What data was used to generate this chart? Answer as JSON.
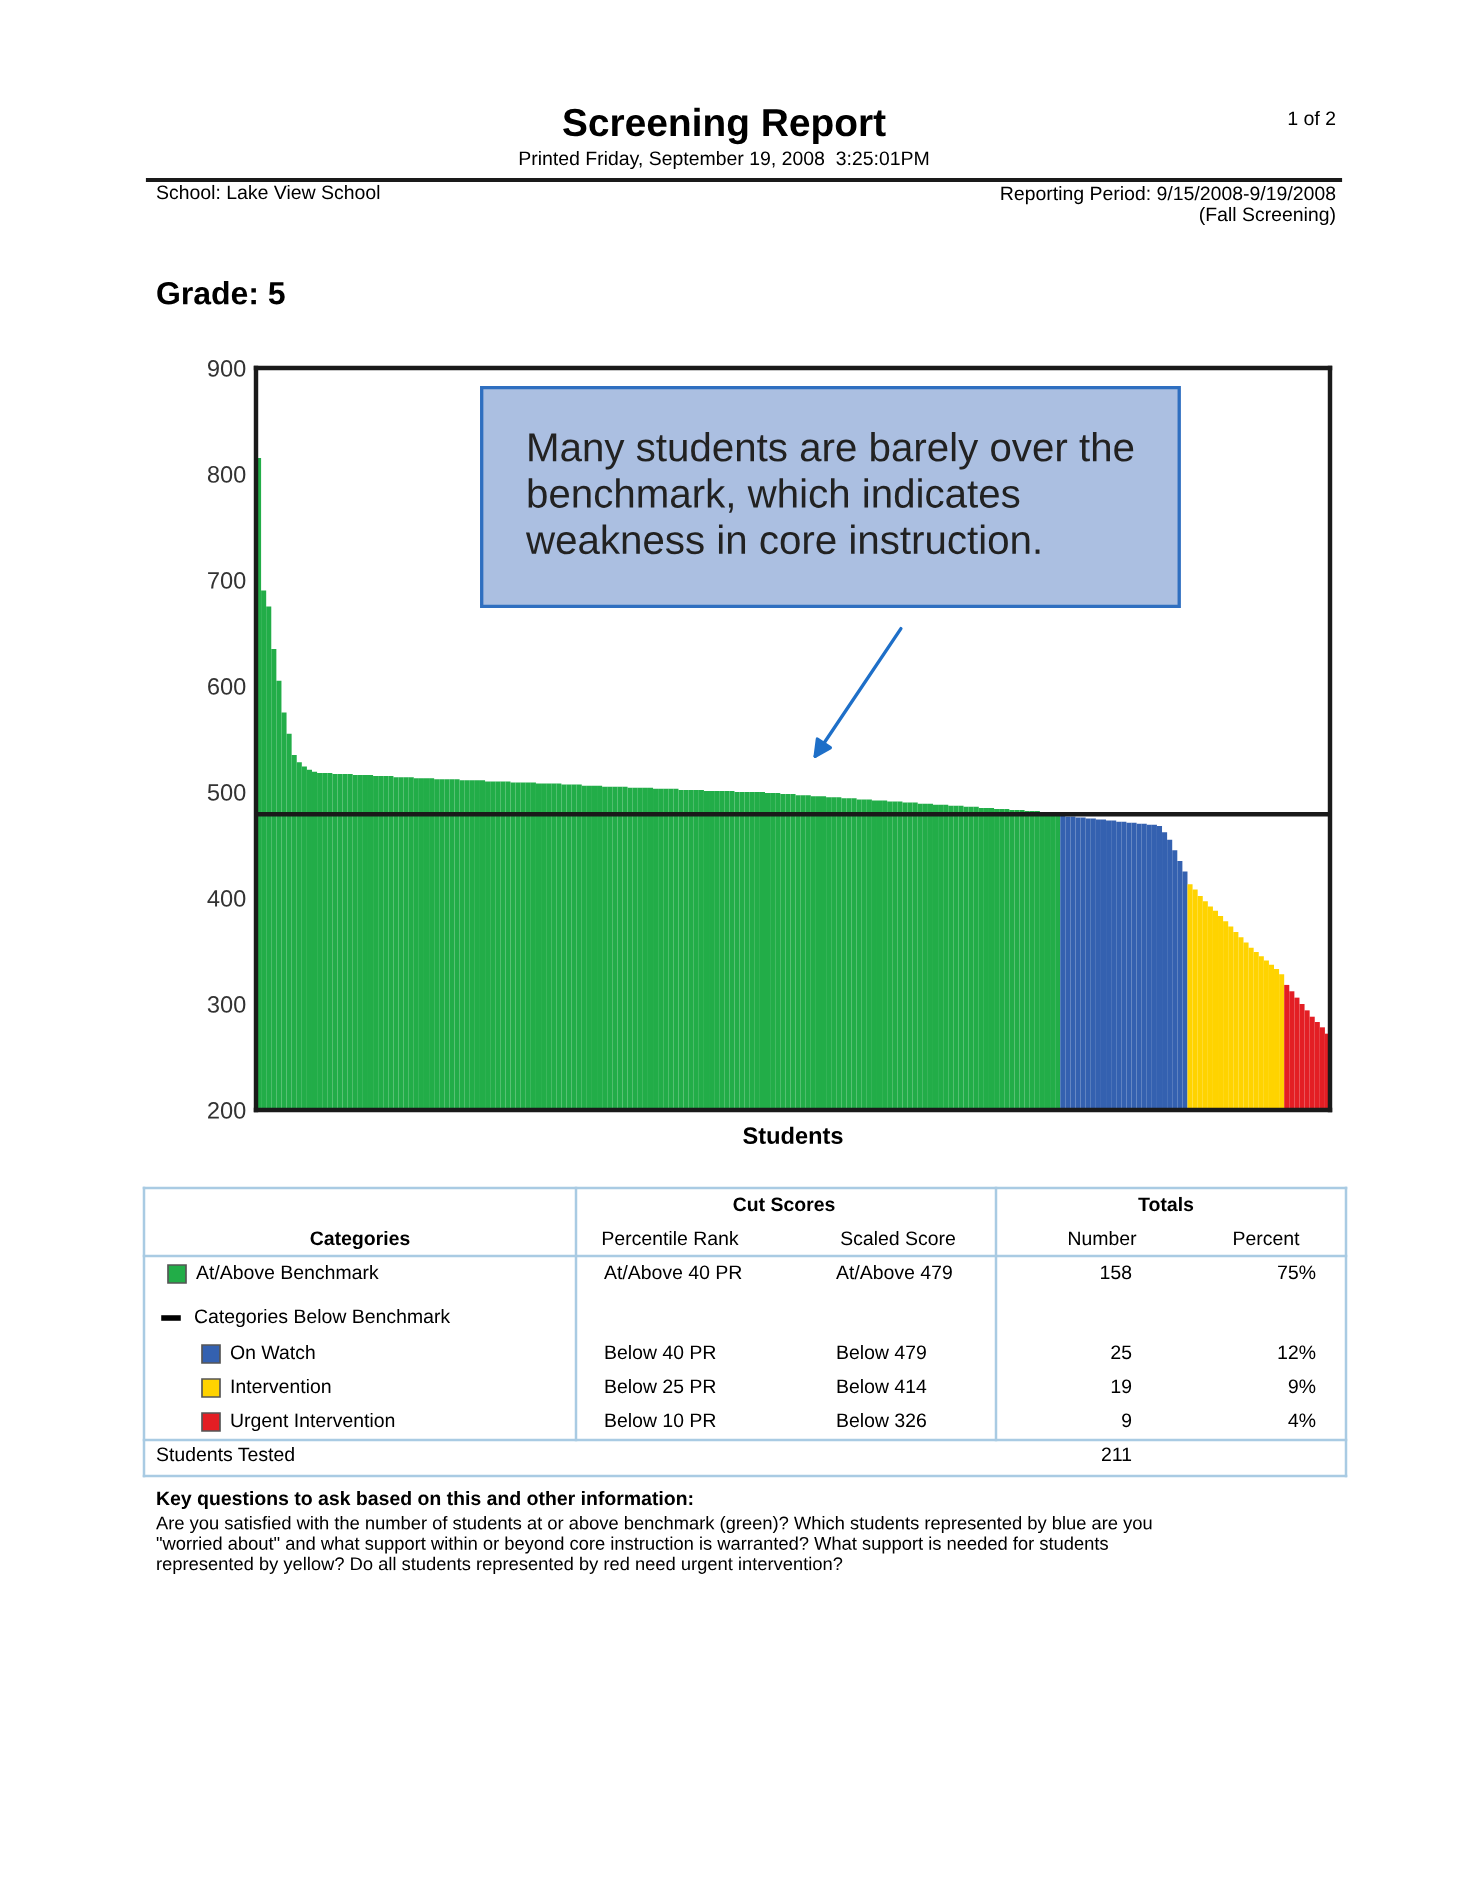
{
  "chart_data": {
    "type": "bar",
    "title": "Screening Report",
    "subtitle": "Printed Friday, September 19, 2008  3:25:01PM",
    "xlabel": "Students",
    "categories": [
      null,
      null,
      null,
      null,
      null,
      null,
      null,
      null,
      null,
      null,
      null,
      null,
      null,
      null,
      null,
      null,
      null,
      null,
      null,
      null,
      null,
      null,
      null,
      null,
      null,
      null,
      null,
      null,
      null,
      null,
      null,
      null,
      null,
      null,
      null,
      null,
      null,
      null,
      null,
      null,
      null,
      null,
      null,
      null,
      null,
      null,
      null,
      null,
      null,
      null,
      null,
      null,
      null,
      null,
      null,
      null,
      null,
      null,
      null,
      null,
      null,
      null,
      null,
      null,
      null,
      null,
      null,
      null,
      null,
      null,
      null,
      null,
      null,
      null,
      null,
      null,
      null,
      null,
      null,
      null,
      null,
      null,
      null,
      null,
      null,
      null,
      null,
      null,
      null,
      null,
      null,
      null,
      null,
      null,
      null,
      null,
      null,
      null,
      null,
      null,
      null,
      null,
      null,
      null,
      null,
      null,
      null,
      null,
      null,
      null,
      null,
      null,
      null,
      null,
      null,
      null,
      null,
      null,
      null,
      null,
      null,
      null,
      null,
      null,
      null,
      null,
      null,
      null,
      null,
      null,
      null,
      null,
      null,
      null,
      null,
      null,
      null,
      null,
      null,
      null,
      null,
      null,
      null,
      null,
      null,
      null,
      null,
      null,
      null,
      null,
      null,
      null,
      null,
      null,
      null,
      null,
      null,
      null,
      null,
      null,
      null,
      null,
      null,
      null,
      null,
      null,
      null,
      null,
      null,
      null,
      null,
      null,
      null,
      null,
      null,
      null,
      null,
      null,
      null,
      null,
      null,
      null,
      null,
      null,
      null,
      null,
      null,
      null,
      null,
      null,
      null,
      null,
      null,
      null,
      null,
      null,
      null,
      null,
      null,
      null,
      null,
      null,
      null,
      null,
      null,
      null,
      null,
      null,
      null,
      null,
      null
    ],
    "ylim": [
      200,
      900
    ],
    "yticks": [
      200,
      300,
      400,
      500,
      600,
      700,
      800,
      900
    ],
    "tick_labels": "y",
    "grid": false,
    "ref_lines": [
      {
        "axis": "y",
        "value": 479,
        "color": "#1a1a1a"
      }
    ],
    "values": [
      815,
      690,
      675,
      635,
      605,
      575,
      555,
      535,
      528,
      524,
      521,
      519,
      518,
      518,
      518,
      517,
      517,
      517,
      517,
      516,
      516,
      516,
      516,
      515,
      515,
      515,
      515,
      514,
      514,
      514,
      514,
      513,
      513,
      513,
      513,
      512,
      512,
      512,
      512,
      512,
      511,
      511,
      511,
      511,
      511,
      510,
      510,
      510,
      510,
      510,
      509,
      509,
      509,
      509,
      509,
      508,
      508,
      508,
      508,
      508,
      507,
      507,
      507,
      507,
      506,
      506,
      506,
      506,
      505,
      505,
      505,
      505,
      505,
      504,
      504,
      504,
      504,
      504,
      503,
      503,
      503,
      503,
      503,
      502,
      502,
      502,
      502,
      502,
      501,
      501,
      501,
      501,
      501,
      501,
      500,
      500,
      500,
      500,
      500,
      500,
      499,
      499,
      499,
      498,
      498,
      498,
      497,
      497,
      497,
      496,
      496,
      496,
      495,
      495,
      495,
      494,
      494,
      494,
      493,
      493,
      493,
      492,
      492,
      492,
      491,
      491,
      491,
      490,
      490,
      490,
      489,
      489,
      489,
      488,
      488,
      488,
      487,
      487,
      487,
      486,
      486,
      486,
      485,
      485,
      485,
      484,
      484,
      484,
      483,
      483,
      483,
      482,
      482,
      482,
      481,
      481,
      480,
      480,
      478,
      477,
      477,
      476,
      476,
      475,
      475,
      474,
      474,
      473,
      473,
      472,
      472,
      471,
      471,
      470,
      470,
      469,
      469,
      468,
      462,
      455,
      445,
      435,
      425,
      413,
      408,
      402,
      397,
      392,
      388,
      383,
      378,
      373,
      368,
      363,
      358,
      353,
      349,
      345,
      341,
      337,
      333,
      328,
      318,
      312,
      306,
      300,
      294,
      288,
      283,
      278,
      272
    ],
    "colors": [
      "#22ad48",
      "#22ad48",
      "#22ad48",
      "#22ad48",
      "#22ad48",
      "#22ad48",
      "#22ad48",
      "#22ad48",
      "#22ad48",
      "#22ad48",
      "#22ad48",
      "#22ad48",
      "#22ad48",
      "#22ad48",
      "#22ad48",
      "#22ad48",
      "#22ad48",
      "#22ad48",
      "#22ad48",
      "#22ad48",
      "#22ad48",
      "#22ad48",
      "#22ad48",
      "#22ad48",
      "#22ad48",
      "#22ad48",
      "#22ad48",
      "#22ad48",
      "#22ad48",
      "#22ad48",
      "#22ad48",
      "#22ad48",
      "#22ad48",
      "#22ad48",
      "#22ad48",
      "#22ad48",
      "#22ad48",
      "#22ad48",
      "#22ad48",
      "#22ad48",
      "#22ad48",
      "#22ad48",
      "#22ad48",
      "#22ad48",
      "#22ad48",
      "#22ad48",
      "#22ad48",
      "#22ad48",
      "#22ad48",
      "#22ad48",
      "#22ad48",
      "#22ad48",
      "#22ad48",
      "#22ad48",
      "#22ad48",
      "#22ad48",
      "#22ad48",
      "#22ad48",
      "#22ad48",
      "#22ad48",
      "#22ad48",
      "#22ad48",
      "#22ad48",
      "#22ad48",
      "#22ad48",
      "#22ad48",
      "#22ad48",
      "#22ad48",
      "#22ad48",
      "#22ad48",
      "#22ad48",
      "#22ad48",
      "#22ad48",
      "#22ad48",
      "#22ad48",
      "#22ad48",
      "#22ad48",
      "#22ad48",
      "#22ad48",
      "#22ad48",
      "#22ad48",
      "#22ad48",
      "#22ad48",
      "#22ad48",
      "#22ad48",
      "#22ad48",
      "#22ad48",
      "#22ad48",
      "#22ad48",
      "#22ad48",
      "#22ad48",
      "#22ad48",
      "#22ad48",
      "#22ad48",
      "#22ad48",
      "#22ad48",
      "#22ad48",
      "#22ad48",
      "#22ad48",
      "#22ad48",
      "#22ad48",
      "#22ad48",
      "#22ad48",
      "#22ad48",
      "#22ad48",
      "#22ad48",
      "#22ad48",
      "#22ad48",
      "#22ad48",
      "#22ad48",
      "#22ad48",
      "#22ad48",
      "#22ad48",
      "#22ad48",
      "#22ad48",
      "#22ad48",
      "#22ad48",
      "#22ad48",
      "#22ad48",
      "#22ad48",
      "#22ad48",
      "#22ad48",
      "#22ad48",
      "#22ad48",
      "#22ad48",
      "#22ad48",
      "#22ad48",
      "#22ad48",
      "#22ad48",
      "#22ad48",
      "#22ad48",
      "#22ad48",
      "#22ad48",
      "#22ad48",
      "#22ad48",
      "#22ad48",
      "#22ad48",
      "#22ad48",
      "#22ad48",
      "#22ad48",
      "#22ad48",
      "#22ad48",
      "#22ad48",
      "#22ad48",
      "#22ad48",
      "#22ad48",
      "#22ad48",
      "#22ad48",
      "#22ad48",
      "#22ad48",
      "#22ad48",
      "#22ad48",
      "#22ad48",
      "#22ad48",
      "#22ad48",
      "#22ad48",
      "#22ad48",
      "#22ad48",
      "#3461b0",
      "#3461b0",
      "#3461b0",
      "#3461b0",
      "#3461b0",
      "#3461b0",
      "#3461b0",
      "#3461b0",
      "#3461b0",
      "#3461b0",
      "#3461b0",
      "#3461b0",
      "#3461b0",
      "#3461b0",
      "#3461b0",
      "#3461b0",
      "#3461b0",
      "#3461b0",
      "#3461b0",
      "#3461b0",
      "#3461b0",
      "#3461b0",
      "#3461b0",
      "#3461b0",
      "#3461b0",
      "#ffd300",
      "#ffd300",
      "#ffd300",
      "#ffd300",
      "#ffd300",
      "#ffd300",
      "#ffd300",
      "#ffd300",
      "#ffd300",
      "#ffd300",
      "#ffd300",
      "#ffd300",
      "#ffd300",
      "#ffd300",
      "#ffd300",
      "#ffd300",
      "#ffd300",
      "#ffd300",
      "#ffd300",
      "#e31e24",
      "#e31e24",
      "#e31e24",
      "#e31e24",
      "#e31e24",
      "#e31e24",
      "#e31e24",
      "#e31e24",
      "#e31e24"
    ],
    "annotations": [
      "1 of 2",
      "School: Lake View School",
      "Reporting Period: 9/15/2008-9/19/2008\n(Fall Screening)",
      "Grade: 5",
      "Many students are barely over the\nbenchmark, which indicates\nweakness in core instruction.",
      "Cut Scores",
      "Totals",
      "Categories",
      "Percentile Rank",
      "Scaled Score",
      "Number",
      "Percent",
      "At/Above 40 PR",
      "At/Above 479",
      "158",
      "75%",
      "Categories Below Benchmark",
      "Below 40 PR",
      "Below 479",
      "25",
      "12%",
      "Below 25 PR",
      "Below 414",
      "19",
      "9%",
      "Below 10 PR",
      "Below 326",
      "9",
      "4%",
      "Students Tested",
      "211",
      "Key questions to ask based on this and other information:",
      "Are you satisfied with the number of students at or above benchmark (green)? Which students represented by blue are you\n\"worried about\" and what support within or beyond core instruction is warranted? What support is needed for students\nrepresented by yellow? Do all students represented by red need urgent intervention?",
      "At/Above Benchmark",
      "On Watch",
      "Intervention",
      "Urgent Intervention"
    ]
  }
}
